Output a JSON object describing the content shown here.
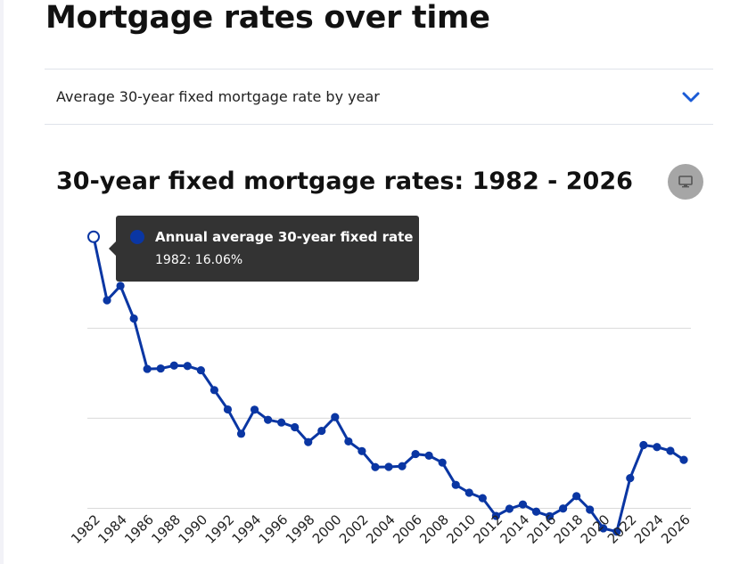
{
  "page": {
    "title": "Mortgage rates over time"
  },
  "accordion": {
    "label": "Average 30-year fixed mortgage rate by year",
    "icon": "chevron-down-icon"
  },
  "device_button": {
    "icon": "monitor-icon"
  },
  "tooltip": {
    "series": "Annual average 30-year fixed rate",
    "value": "1982: 16.06%",
    "year": 1982
  },
  "colors": {
    "line": "#0a36a3",
    "grid": "#d9d9d9",
    "tooltip_bg": "#333333"
  },
  "chart_data": {
    "type": "line",
    "title": "30-year fixed mortgage rates: 1982 - 2026",
    "xlabel": "",
    "ylabel": "",
    "ylim": [
      2,
      17
    ],
    "grid": true,
    "x": [
      1982,
      1983,
      1984,
      1985,
      1986,
      1987,
      1988,
      1989,
      1990,
      1991,
      1992,
      1993,
      1994,
      1995,
      1996,
      1997,
      1998,
      1999,
      2000,
      2001,
      2002,
      2003,
      2004,
      2005,
      2006,
      2007,
      2008,
      2009,
      2010,
      2011,
      2012,
      2013,
      2014,
      2015,
      2016,
      2017,
      2018,
      2019,
      2020,
      2021,
      2022,
      2023,
      2024,
      2025,
      2026
    ],
    "series": [
      {
        "name": "Annual average 30-year fixed rate",
        "values": [
          16.06,
          13.24,
          13.88,
          12.43,
          10.19,
          10.21,
          10.34,
          10.32,
          10.13,
          9.25,
          8.39,
          7.31,
          8.38,
          7.93,
          7.81,
          7.6,
          6.94,
          7.44,
          8.05,
          6.97,
          6.54,
          5.83,
          5.84,
          5.87,
          6.41,
          6.34,
          6.03,
          5.04,
          4.69,
          4.45,
          3.66,
          3.98,
          4.17,
          3.85,
          3.65,
          3.99,
          4.54,
          3.94,
          3.11,
          2.96,
          5.34,
          6.81,
          6.72,
          6.55,
          6.15
        ]
      }
    ],
    "x_tick_labels": [
      "1982",
      "1984",
      "1986",
      "1988",
      "1990",
      "1992",
      "1994",
      "1996",
      "1998",
      "2000",
      "2002",
      "2004",
      "2006",
      "2008",
      "2010",
      "2012",
      "2014",
      "2016",
      "2018",
      "2020",
      "2022",
      "2024",
      "2026"
    ],
    "gridlines": [
      4,
      8,
      12
    ]
  }
}
